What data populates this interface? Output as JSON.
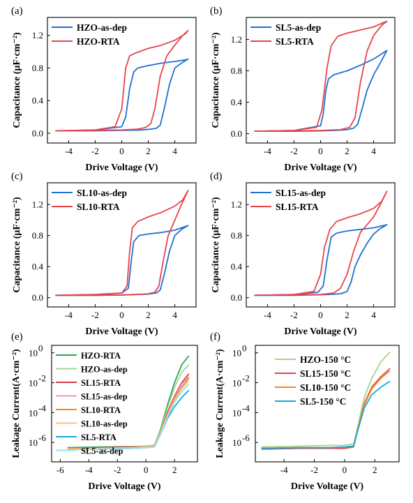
{
  "chart_data": [
    {
      "panel": "(a)",
      "type": "line",
      "xlabel": "Drive Voltage (V)",
      "ylabel": "Capacitance (μF·cm⁻²)",
      "xlim": [
        -5.6,
        5.6
      ],
      "ylim": [
        -0.12,
        1.42
      ],
      "xticks": [
        -4,
        -2,
        0,
        2,
        4
      ],
      "xticklabels": [
        "-4",
        "-2",
        "0",
        "2",
        "4"
      ],
      "yticks": [
        0.0,
        0.4,
        0.8,
        1.2
      ],
      "yticklabels": [
        "0.0",
        "0.4",
        "0.8",
        "1.2"
      ],
      "legend": "top-left",
      "series": [
        {
          "name": "HZO-as-dep",
          "color": "#1f6fd0",
          "x": [
            -5,
            -2,
            0,
            0.3,
            0.6,
            0.9,
            1.2,
            2,
            3,
            4,
            4.8,
            5,
            4.5,
            4,
            3.6,
            3.2,
            2.9,
            2.6,
            2.2,
            1.5,
            0,
            -2,
            -5
          ],
          "y": [
            0.03,
            0.04,
            0.08,
            0.2,
            0.55,
            0.75,
            0.8,
            0.83,
            0.86,
            0.88,
            0.9,
            0.91,
            0.86,
            0.8,
            0.6,
            0.3,
            0.1,
            0.06,
            0.05,
            0.04,
            0.035,
            0.03,
            0.03
          ]
        },
        {
          "name": "HZO-RTA",
          "color": "#e8434d",
          "x": [
            -5,
            -2,
            -0.5,
            0,
            0.3,
            0.6,
            1,
            2,
            3,
            4,
            4.8,
            5,
            4.6,
            4,
            3.4,
            2.9,
            2.5,
            2.2,
            1.8,
            1.2,
            0,
            -2,
            -5
          ],
          "y": [
            0.03,
            0.04,
            0.08,
            0.3,
            0.8,
            0.95,
            0.98,
            1.04,
            1.08,
            1.14,
            1.22,
            1.26,
            1.2,
            1.08,
            0.95,
            0.7,
            0.3,
            0.12,
            0.07,
            0.05,
            0.04,
            0.035,
            0.03
          ]
        }
      ]
    },
    {
      "panel": "(b)",
      "type": "line",
      "xlabel": "Drive Voltage (V)",
      "ylabel": "Capacitance (μF·cm⁻²)",
      "xlim": [
        -5.6,
        5.6
      ],
      "ylim": [
        -0.12,
        1.48
      ],
      "xticks": [
        -4,
        -2,
        0,
        2,
        4
      ],
      "xticklabels": [
        "-4",
        "-2",
        "0",
        "2",
        "4"
      ],
      "yticks": [
        0.0,
        0.4,
        0.8,
        1.2
      ],
      "yticklabels": [
        "0.0",
        "0.4",
        "0.8",
        "1.2"
      ],
      "legend": "top-left",
      "series": [
        {
          "name": "SL5-as-dep",
          "color": "#1f6fd0",
          "x": [
            -5,
            -2,
            0,
            0.2,
            0.4,
            0.6,
            1,
            2,
            3,
            4,
            5,
            4.5,
            4,
            3.5,
            3.1,
            2.8,
            2.5,
            2,
            1,
            0,
            -2,
            -5
          ],
          "y": [
            0.03,
            0.04,
            0.1,
            0.25,
            0.55,
            0.7,
            0.75,
            0.8,
            0.87,
            0.95,
            1.06,
            0.9,
            0.75,
            0.55,
            0.3,
            0.12,
            0.07,
            0.05,
            0.04,
            0.035,
            0.03,
            0.03
          ]
        },
        {
          "name": "SL5-RTA",
          "color": "#e8434d",
          "x": [
            -5,
            -2,
            -0.3,
            0.1,
            0.5,
            0.8,
            1.3,
            2,
            3,
            4,
            4.8,
            5,
            4.6,
            4,
            3.5,
            3,
            2.6,
            2.2,
            1.5,
            0,
            -2,
            -5
          ],
          "y": [
            0.03,
            0.04,
            0.08,
            0.3,
            0.85,
            1.12,
            1.24,
            1.28,
            1.32,
            1.36,
            1.42,
            1.43,
            1.38,
            1.25,
            1.05,
            0.65,
            0.2,
            0.08,
            0.05,
            0.04,
            0.035,
            0.03
          ]
        }
      ]
    },
    {
      "panel": "(c)",
      "type": "line",
      "xlabel": "Drive Voltage (V)",
      "ylabel": "Capacitance (μF·cm⁻²)",
      "xlim": [
        -5.6,
        5.6
      ],
      "ylim": [
        -0.12,
        1.48
      ],
      "xticks": [
        -4,
        -2,
        0,
        2,
        4
      ],
      "xticklabels": [
        "-4",
        "-2",
        "0",
        "2",
        "4"
      ],
      "yticks": [
        0.0,
        0.4,
        0.8,
        1.2
      ],
      "yticklabels": [
        "0.0",
        "0.4",
        "0.8",
        "1.2"
      ],
      "legend": "top-left",
      "series": [
        {
          "name": "SL10-as-dep",
          "color": "#1f6fd0",
          "x": [
            -5,
            -2,
            0,
            0.5,
            0.7,
            0.9,
            1.3,
            2,
            3,
            4,
            5,
            4.5,
            4,
            3.6,
            3.2,
            2.9,
            2.6,
            2,
            1,
            0,
            -2,
            -5
          ],
          "y": [
            0.03,
            0.04,
            0.06,
            0.12,
            0.45,
            0.72,
            0.8,
            0.82,
            0.84,
            0.87,
            0.93,
            0.88,
            0.8,
            0.6,
            0.3,
            0.1,
            0.06,
            0.045,
            0.04,
            0.035,
            0.03,
            0.03
          ]
        },
        {
          "name": "SL10-RTA",
          "color": "#e8434d",
          "x": [
            -5,
            -2,
            0,
            0.4,
            0.6,
            0.8,
            1.2,
            2,
            3,
            4,
            4.6,
            5,
            4.5,
            4,
            3.5,
            3.1,
            2.8,
            2.5,
            2,
            1,
            0,
            -2,
            -5
          ],
          "y": [
            0.03,
            0.04,
            0.06,
            0.15,
            0.6,
            0.9,
            0.98,
            1.04,
            1.1,
            1.18,
            1.26,
            1.38,
            1.2,
            1.0,
            0.8,
            0.45,
            0.15,
            0.07,
            0.05,
            0.04,
            0.035,
            0.03,
            0.03
          ]
        }
      ]
    },
    {
      "panel": "(d)",
      "type": "line",
      "xlabel": "Drive Voltage (V)",
      "ylabel": "Capacitance (μF·cm⁻²)",
      "xlim": [
        -5.6,
        5.6
      ],
      "ylim": [
        -0.12,
        1.48
      ],
      "xticks": [
        -4,
        -2,
        0,
        2,
        4
      ],
      "xticklabels": [
        "-4",
        "-2",
        "0",
        "2",
        "4"
      ],
      "yticks": [
        0.0,
        0.4,
        0.8,
        1.2
      ],
      "yticklabels": [
        "0.0",
        "0.4",
        "0.8",
        "1.2"
      ],
      "legend": "top-left",
      "series": [
        {
          "name": "SL15-as-dep",
          "color": "#1f6fd0",
          "x": [
            -5,
            -2,
            -0.2,
            0.2,
            0.5,
            0.8,
            1.2,
            2,
            3,
            4,
            5,
            4.5,
            4,
            3.5,
            3,
            2.6,
            2.3,
            2,
            1.5,
            0.5,
            -2,
            -5
          ],
          "y": [
            0.03,
            0.04,
            0.07,
            0.15,
            0.5,
            0.78,
            0.83,
            0.86,
            0.88,
            0.9,
            0.94,
            0.89,
            0.82,
            0.7,
            0.55,
            0.4,
            0.2,
            0.08,
            0.05,
            0.04,
            0.03,
            0.03
          ]
        },
        {
          "name": "SL15-RTA",
          "color": "#e8434d",
          "x": [
            -5,
            -2,
            -0.5,
            0,
            0.3,
            0.7,
            1.2,
            2,
            3,
            4,
            4.6,
            5,
            4.5,
            4,
            3.5,
            3,
            2.5,
            2,
            1.5,
            1,
            0,
            -2,
            -5
          ],
          "y": [
            0.03,
            0.04,
            0.08,
            0.3,
            0.65,
            0.88,
            0.98,
            1.03,
            1.08,
            1.15,
            1.24,
            1.37,
            1.2,
            1.04,
            0.94,
            0.84,
            0.6,
            0.3,
            0.12,
            0.06,
            0.04,
            0.035,
            0.03
          ]
        }
      ]
    },
    {
      "panel": "(e)",
      "type": "line",
      "yscale": "log",
      "xlabel": "Drive Voltage (V)",
      "ylabel": "Leakage Current(A·cm⁻²)",
      "xlim": [
        -6.6,
        3.6
      ],
      "ylim_log10": [
        -7.3,
        0.5
      ],
      "xticks": [
        -6,
        -4,
        -2,
        0,
        2
      ],
      "xticklabels": [
        "-6",
        "-4",
        "-2",
        "0",
        "2"
      ],
      "yticks_log10": [
        -6,
        -4,
        -2,
        0
      ],
      "yticklabels": [
        "10",
        "10",
        "10",
        "10"
      ],
      "yticksup": [
        "-6",
        "-4",
        "-2",
        "0"
      ],
      "legend": "top-left",
      "series": [
        {
          "name": "HZO-RTA",
          "color": "#2aa55a",
          "x": [
            -5.5,
            -3,
            -1,
            0,
            0.6,
            1,
            1.5,
            2,
            2.5,
            3
          ],
          "y_log10": [
            -6.35,
            -6.3,
            -6.28,
            -6.25,
            -6.2,
            -5.2,
            -3.5,
            -2.0,
            -0.8,
            -0.2
          ]
        },
        {
          "name": "HZO-as-dep",
          "color": "#a3d68a",
          "x": [
            -5.5,
            -3,
            -1,
            0,
            0.6,
            1,
            1.5,
            2,
            2.5,
            3
          ],
          "y_log10": [
            -6.4,
            -6.35,
            -6.3,
            -6.25,
            -6.2,
            -5.3,
            -3.7,
            -2.3,
            -1.3,
            -0.8
          ]
        },
        {
          "name": "SL15-RTA",
          "color": "#d6374a",
          "x": [
            -5.5,
            -3,
            -1,
            0,
            0.6,
            1,
            1.5,
            2,
            2.5,
            3
          ],
          "y_log10": [
            -6.4,
            -6.35,
            -6.3,
            -6.3,
            -6.2,
            -5.4,
            -4.0,
            -2.9,
            -2.0,
            -1.4
          ]
        },
        {
          "name": "SL15-as-dep",
          "color": "#ee93c0",
          "x": [
            -5.5,
            -3,
            -1,
            0,
            0.6,
            1,
            1.5,
            2,
            2.5,
            3
          ],
          "y_log10": [
            -6.45,
            -6.4,
            -6.35,
            -6.3,
            -6.25,
            -5.4,
            -4.1,
            -3.0,
            -2.1,
            -1.6
          ]
        },
        {
          "name": "SL10-RTA",
          "color": "#f28a1c",
          "x": [
            -5.5,
            -3,
            -1,
            0,
            0.6,
            1,
            1.5,
            2,
            2.5,
            3
          ],
          "y_log10": [
            -6.4,
            -6.4,
            -6.35,
            -6.3,
            -6.2,
            -5.4,
            -4.1,
            -3.1,
            -2.3,
            -1.7
          ]
        },
        {
          "name": "SL10-as-dep",
          "color": "#f7c58c",
          "x": [
            -5.5,
            -3,
            -1,
            0,
            0.6,
            1,
            1.5,
            2,
            2.5,
            3
          ],
          "y_log10": [
            -6.45,
            -6.4,
            -6.35,
            -6.3,
            -6.25,
            -5.4,
            -4.2,
            -3.2,
            -2.4,
            -1.9
          ]
        },
        {
          "name": "SL5-RTA",
          "color": "#14a9dc",
          "x": [
            -5.5,
            -3,
            -1,
            0,
            0.6,
            1,
            1.5,
            2,
            2.5,
            3
          ],
          "y_log10": [
            -6.5,
            -6.45,
            -6.4,
            -6.35,
            -6.3,
            -5.5,
            -4.4,
            -3.6,
            -3.0,
            -2.5
          ]
        },
        {
          "name": "SL5-as-dep",
          "color": "#9fdcef",
          "x": [
            -5.5,
            -3,
            -1,
            0,
            0.6,
            1,
            1.5,
            2,
            2.5,
            3
          ],
          "y_log10": [
            -6.5,
            -6.45,
            -6.4,
            -6.35,
            -6.3,
            -5.5,
            -4.3,
            -3.3,
            -2.6,
            -2.1
          ]
        }
      ]
    },
    {
      "panel": "(f)",
      "type": "line",
      "yscale": "log",
      "xlabel": "Drive Voltage (V)",
      "ylabel": "Leakage Current(A·cm⁻²)",
      "xlim": [
        -5.9,
        3.6
      ],
      "ylim_log10": [
        -7.3,
        0.5
      ],
      "xticks": [
        -4,
        -2,
        0,
        2
      ],
      "xticklabels": [
        "-4",
        "-2",
        "0",
        "2"
      ],
      "yticks_log10": [
        -6,
        -4,
        -2,
        0
      ],
      "yticklabels": [
        "10",
        "10",
        "10",
        "10"
      ],
      "yticksup": [
        "-6",
        "-4",
        "-2",
        "0"
      ],
      "legend": "top-left",
      "series": [
        {
          "name": "HZO-150 °C",
          "color": "#a3d68a",
          "x": [
            -5.5,
            -3,
            -1,
            0,
            0.6,
            0.9,
            1.3,
            1.8,
            2.4,
            3
          ],
          "y_log10": [
            -6.3,
            -6.25,
            -6.2,
            -6.2,
            -6.1,
            -4.8,
            -3.0,
            -1.7,
            -0.6,
            0.05
          ]
        },
        {
          "name": "SL15-150 °C",
          "color": "#e8434d",
          "x": [
            -5.5,
            -3,
            -1,
            0,
            0.6,
            0.9,
            1.3,
            1.8,
            2.4,
            3
          ],
          "y_log10": [
            -6.45,
            -6.4,
            -6.4,
            -6.4,
            -6.3,
            -5.0,
            -3.4,
            -2.3,
            -1.6,
            -1.05
          ]
        },
        {
          "name": "SL10-150 °C",
          "color": "#f28a1c",
          "x": [
            -5.5,
            -3,
            -1,
            0,
            0.6,
            0.9,
            1.3,
            1.8,
            2.4,
            3
          ],
          "y_log10": [
            -6.4,
            -6.35,
            -6.35,
            -6.3,
            -6.25,
            -5.0,
            -3.5,
            -2.4,
            -1.7,
            -1.2
          ]
        },
        {
          "name": "SL5-150 °C",
          "color": "#14a9dc",
          "x": [
            -5.5,
            -3,
            -1,
            0,
            0.6,
            0.9,
            1.3,
            1.8,
            2.4,
            3
          ],
          "y_log10": [
            -6.4,
            -6.35,
            -6.35,
            -6.3,
            -6.25,
            -5.1,
            -3.7,
            -2.8,
            -2.3,
            -1.9
          ]
        }
      ]
    }
  ]
}
